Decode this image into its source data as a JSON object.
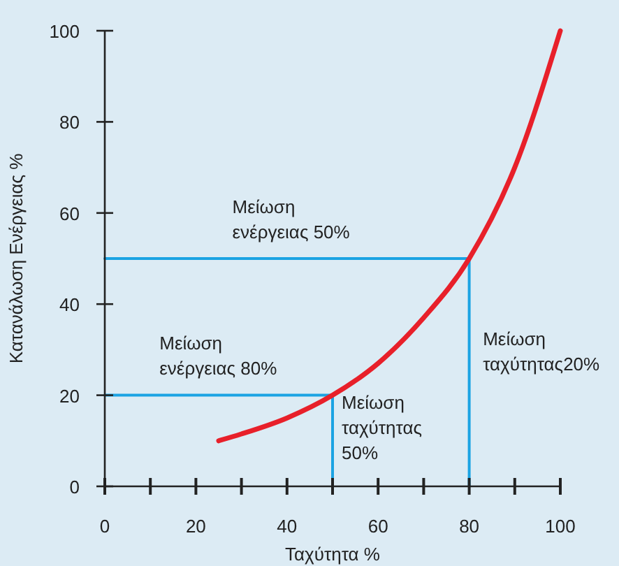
{
  "chart_data": {
    "type": "line",
    "xlabel": "Ταχύτητα %",
    "ylabel": "Κατανάλωση Ενέργειας %",
    "xlim": [
      0,
      100
    ],
    "ylim": [
      0,
      100
    ],
    "xticks": [
      0,
      {
        "value": 10,
        "label": null
      },
      20,
      {
        "value": 30,
        "label": null
      },
      40,
      {
        "value": 50,
        "label": null
      },
      60,
      {
        "value": 70,
        "label": null
      },
      80,
      {
        "value": 90,
        "label": null
      },
      100
    ],
    "yticks": [
      0,
      20,
      40,
      60,
      80,
      100
    ],
    "series": [
      {
        "color": "#e8202a",
        "x": [
          25,
          30,
          40,
          50,
          60,
          70,
          80,
          90,
          100
        ],
        "values": [
          10,
          11.5,
          15,
          20,
          27,
          37,
          50,
          70,
          100
        ]
      },
      {
        "color": "#1ba3e3",
        "x": [
          0,
          80,
          80
        ],
        "values": [
          50,
          50,
          0
        ]
      },
      {
        "color": "#1ba3e3",
        "x": [
          0,
          50,
          50
        ],
        "values": [
          20,
          20,
          0
        ]
      }
    ],
    "annotations": [
      "Μείωση\nενέργειας 50%",
      "Μείωση\nενέργειας 80%",
      "Μείωση\nταχύτητας\n50%",
      "Μείωση\nταχύτητας20%"
    ],
    "grid": false
  }
}
